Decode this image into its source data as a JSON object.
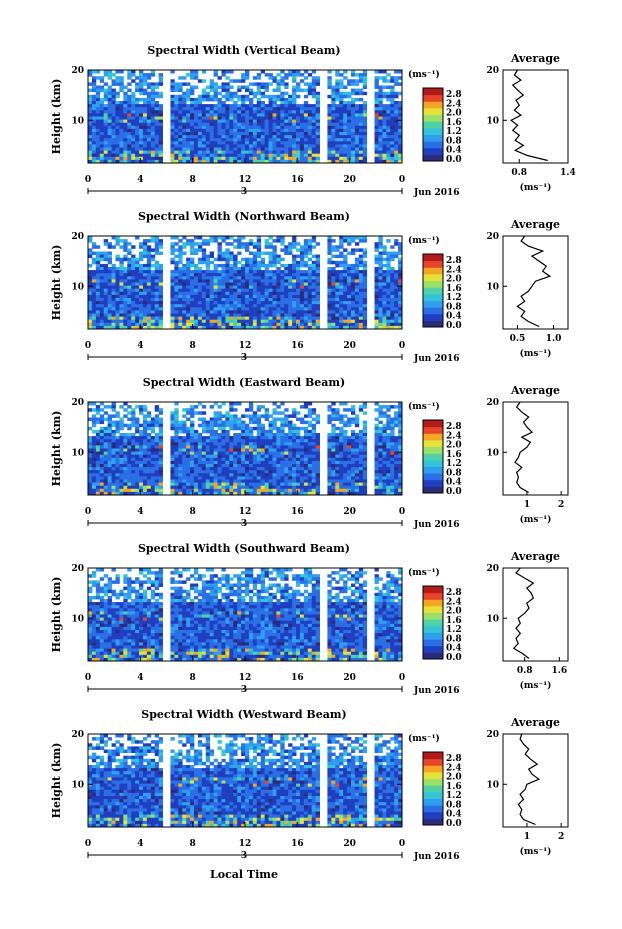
{
  "figure": {
    "xlabel": "Local Time",
    "date_label": "Jun 2016",
    "day_label": "3",
    "avg_title": "Average",
    "unit_label": "(ms⁻¹)",
    "ylabel": "Height (km)"
  },
  "colorscale": {
    "ticks": [
      "2.8",
      "2.4",
      "2.0",
      "1.6",
      "1.2",
      "0.8",
      "0.4",
      "0.0"
    ],
    "colors": [
      "#2b2b7a",
      "#1f3fbf",
      "#2b6fe6",
      "#2fa0f0",
      "#33c4d8",
      "#4fd3a6",
      "#9be06a",
      "#e6e23a",
      "#f5a623",
      "#e8442a",
      "#b31a1a"
    ]
  },
  "chart_data": [
    {
      "type": "heatmap",
      "title": "Spectral Width (Vertical Beam)",
      "x_ticks": [
        "0",
        "4",
        "8",
        "12",
        "16",
        "20",
        "0"
      ],
      "y_ticks": [
        "20",
        "10"
      ],
      "xlim": [
        0,
        24
      ],
      "ylim": [
        1.5,
        20
      ],
      "data_gaps_hours": [
        [
          5.6,
          6.2
        ],
        [
          17.8,
          18.2
        ],
        [
          21.4,
          21.8
        ]
      ],
      "avg_profile": {
        "xlim": [
          0.6,
          1.4
        ],
        "x_ticks": [
          "0.8",
          "1.4"
        ],
        "y_ticks": [
          "20",
          "10"
        ],
        "height_km": [
          2,
          3,
          4,
          5,
          6,
          7,
          8,
          9,
          10,
          11,
          12,
          13,
          14,
          15,
          16,
          17,
          18,
          19,
          20
        ],
        "width_ms": [
          1.15,
          0.9,
          0.75,
          0.85,
          0.75,
          0.8,
          0.72,
          0.78,
          0.7,
          0.82,
          0.74,
          0.8,
          0.76,
          0.85,
          0.78,
          0.72,
          0.82,
          0.74,
          0.78
        ]
      }
    },
    {
      "type": "heatmap",
      "title": "Spectral Width (Northward Beam)",
      "x_ticks": [
        "0",
        "4",
        "8",
        "12",
        "16",
        "20",
        "0"
      ],
      "y_ticks": [
        "20",
        "10"
      ],
      "xlim": [
        0,
        24
      ],
      "ylim": [
        1.5,
        20
      ],
      "data_gaps_hours": [
        [
          5.6,
          6.2
        ],
        [
          17.8,
          18.2
        ],
        [
          21.4,
          21.8
        ]
      ],
      "avg_profile": {
        "xlim": [
          0.3,
          1.2
        ],
        "x_ticks": [
          "0.5",
          "1.0"
        ],
        "y_ticks": [
          "20",
          "10"
        ],
        "height_km": [
          2,
          3,
          4,
          5,
          6,
          7,
          8,
          9,
          10,
          11,
          12,
          13,
          14,
          15,
          16,
          17,
          18,
          19,
          20
        ],
        "width_ms": [
          0.8,
          0.65,
          0.55,
          0.6,
          0.5,
          0.6,
          0.55,
          0.65,
          0.7,
          0.75,
          0.95,
          0.85,
          0.9,
          0.8,
          0.7,
          0.85,
          0.65,
          0.55,
          0.6
        ]
      }
    },
    {
      "type": "heatmap",
      "title": "Spectral Width (Eastward Beam)",
      "x_ticks": [
        "0",
        "4",
        "8",
        "12",
        "16",
        "20",
        "0"
      ],
      "y_ticks": [
        "20",
        "10"
      ],
      "xlim": [
        0,
        24
      ],
      "ylim": [
        1.5,
        20
      ],
      "data_gaps_hours": [
        [
          5.6,
          6.2
        ],
        [
          17.8,
          18.2
        ],
        [
          21.4,
          21.8
        ]
      ],
      "avg_profile": {
        "xlim": [
          0.3,
          2.2
        ],
        "x_ticks": [
          "1",
          "2"
        ],
        "y_ticks": [
          "20",
          "10"
        ],
        "height_km": [
          2,
          3,
          4,
          5,
          6,
          7,
          8,
          9,
          10,
          11,
          12,
          13,
          14,
          15,
          16,
          17,
          18,
          19,
          20
        ],
        "width_ms": [
          1.05,
          0.8,
          0.7,
          0.75,
          0.7,
          0.85,
          0.65,
          0.75,
          0.8,
          1.0,
          1.1,
          0.85,
          1.15,
          1.0,
          0.9,
          1.05,
          0.85,
          0.7,
          0.8
        ]
      }
    },
    {
      "type": "heatmap",
      "title": "Spectral Width (Southward Beam)",
      "x_ticks": [
        "0",
        "4",
        "8",
        "12",
        "16",
        "20",
        "0"
      ],
      "y_ticks": [
        "20",
        "10"
      ],
      "xlim": [
        0,
        24
      ],
      "ylim": [
        1.5,
        20
      ],
      "data_gaps_hours": [
        [
          5.6,
          6.2
        ],
        [
          17.8,
          18.2
        ],
        [
          21.4,
          21.8
        ]
      ],
      "avg_profile": {
        "xlim": [
          0.3,
          1.8
        ],
        "x_ticks": [
          "0.8",
          "1.6"
        ],
        "y_ticks": [
          "20",
          "10"
        ],
        "height_km": [
          2,
          3,
          4,
          5,
          6,
          7,
          8,
          9,
          10,
          11,
          12,
          13,
          14,
          15,
          16,
          17,
          18,
          19,
          20
        ],
        "width_ms": [
          0.9,
          0.75,
          0.55,
          0.65,
          0.6,
          0.7,
          0.6,
          0.7,
          0.65,
          0.8,
          0.9,
          0.85,
          1.0,
          0.95,
          0.85,
          1.0,
          0.8,
          0.6,
          0.7
        ]
      }
    },
    {
      "type": "heatmap",
      "title": "Spectral Width (Westward Beam)",
      "x_ticks": [
        "0",
        "4",
        "8",
        "12",
        "16",
        "20",
        "0"
      ],
      "y_ticks": [
        "20",
        "10"
      ],
      "xlim": [
        0,
        24
      ],
      "ylim": [
        1.5,
        20
      ],
      "data_gaps_hours": [
        [
          5.6,
          6.2
        ],
        [
          17.8,
          18.2
        ],
        [
          21.4,
          21.8
        ]
      ],
      "avg_profile": {
        "xlim": [
          0.3,
          2.2
        ],
        "x_ticks": [
          "1",
          "2"
        ],
        "y_ticks": [
          "20",
          "10"
        ],
        "height_km": [
          2,
          3,
          4,
          5,
          6,
          7,
          8,
          9,
          10,
          11,
          12,
          13,
          14,
          15,
          16,
          17,
          18,
          19,
          20
        ],
        "width_ms": [
          1.25,
          0.9,
          0.8,
          0.85,
          0.75,
          0.9,
          0.8,
          0.95,
          1.0,
          1.35,
          1.15,
          1.05,
          1.3,
          1.1,
          0.95,
          1.05,
          0.9,
          0.8,
          0.85
        ]
      }
    }
  ]
}
